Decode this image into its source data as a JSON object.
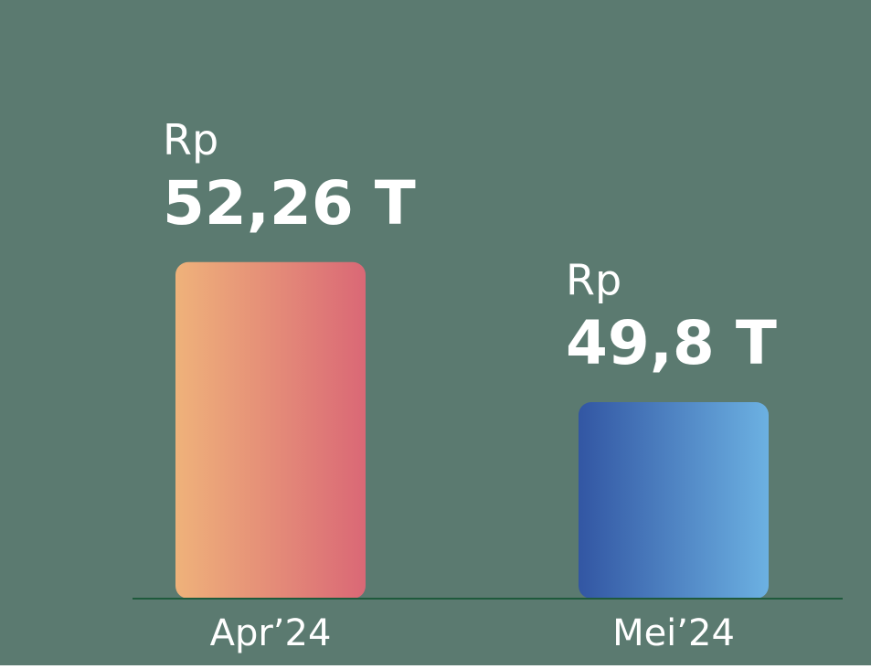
{
  "chart_data": {
    "type": "bar",
    "categories": [
      "Apr’24",
      "Mei’24"
    ],
    "values": [
      52.26,
      49.8
    ],
    "value_labels": [
      "52,26 T",
      "49,8 T"
    ],
    "value_prefix": "Rp",
    "colors": [
      [
        "#efb27a",
        "#da6876"
      ],
      [
        "#3256a3",
        "#6cb1e2"
      ]
    ],
    "ylim": [
      46.35,
      56.22
    ],
    "background": "#5b7a70",
    "baseline_color": "#1f5a3c"
  }
}
